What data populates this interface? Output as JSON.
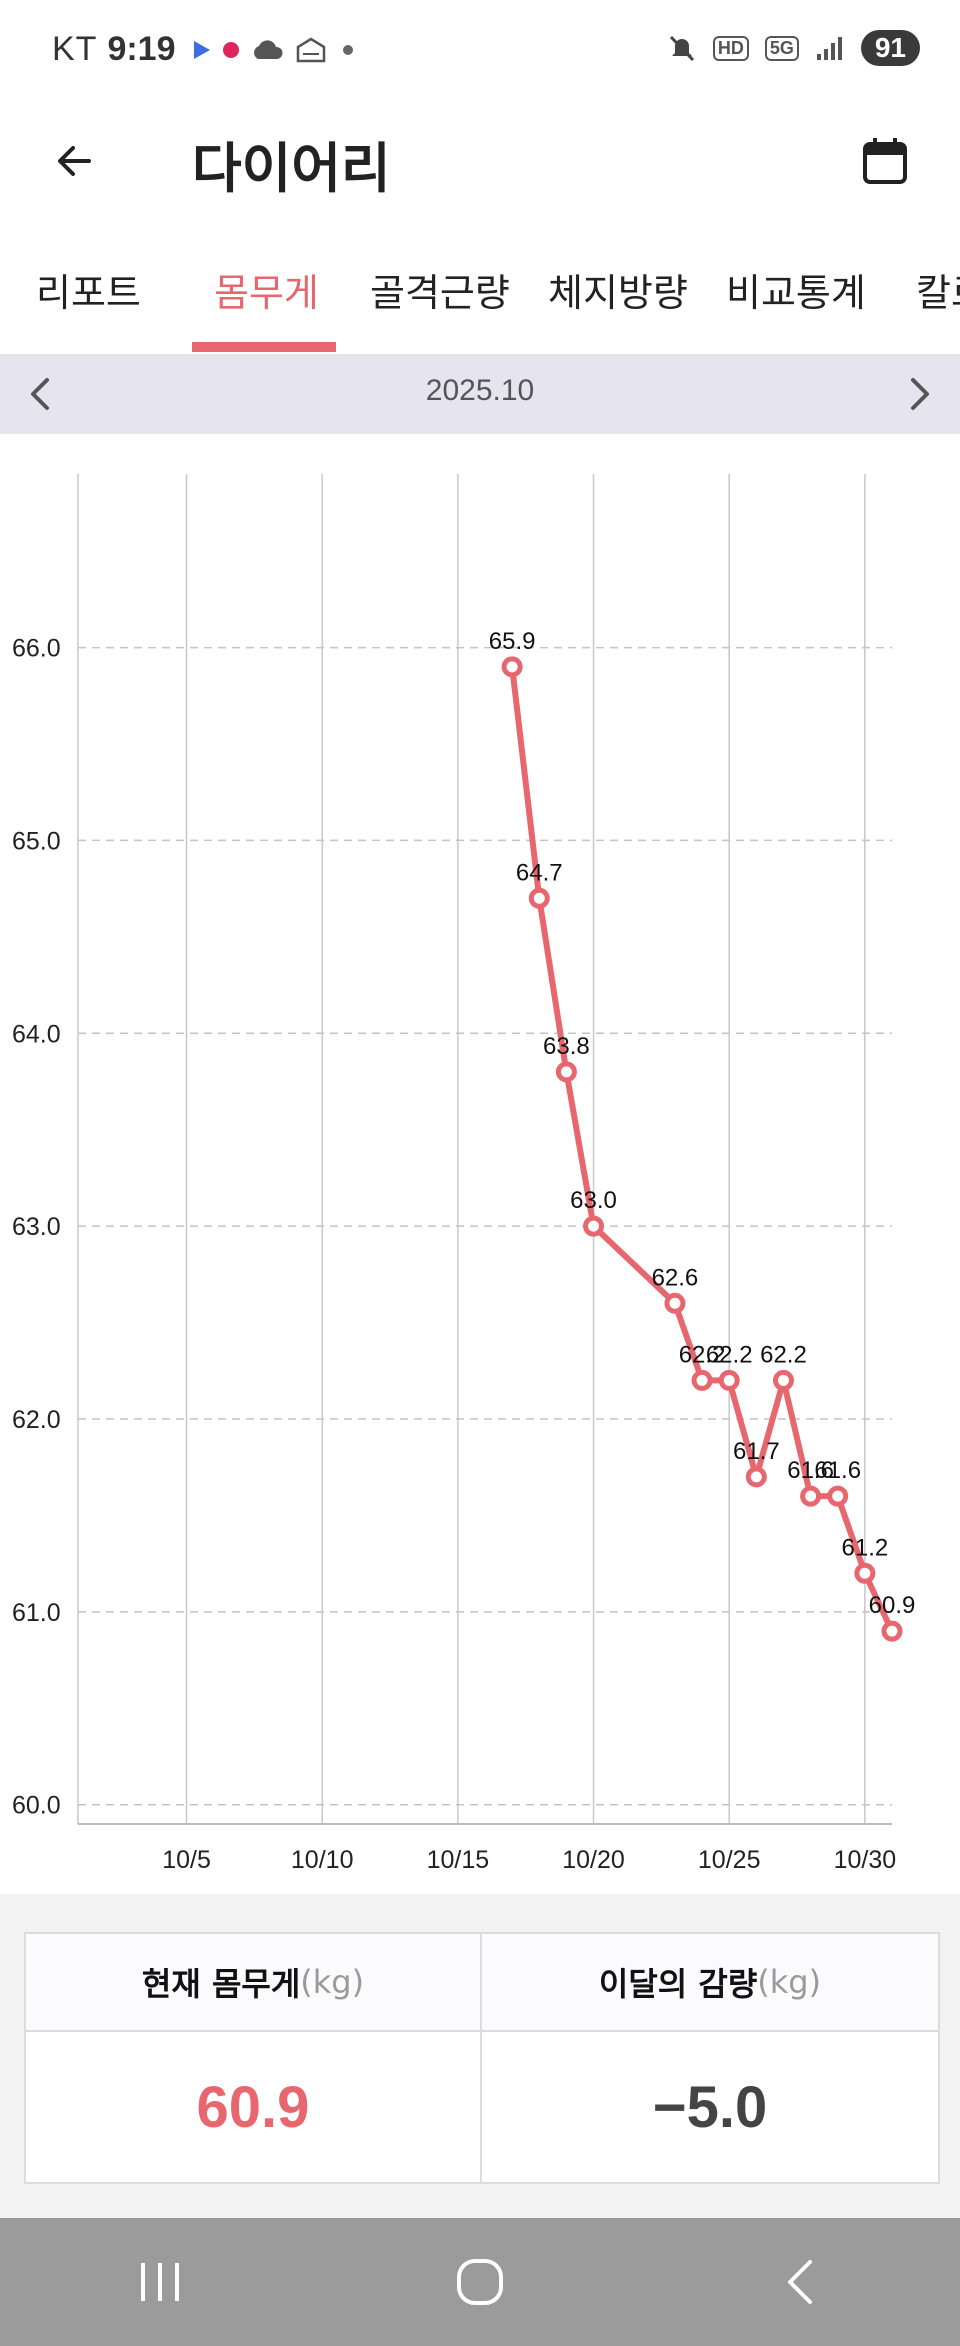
{
  "status_bar": {
    "carrier": "KT",
    "time": "9:19",
    "network_hd": "HD",
    "network_5g": "5G",
    "battery": "91"
  },
  "app_bar": {
    "title": "다이어리",
    "back_icon": "arrow-left-icon",
    "calendar_icon": "calendar-icon"
  },
  "tabs": [
    {
      "label": "리포트",
      "active": false
    },
    {
      "label": "몸무게",
      "active": true
    },
    {
      "label": "골격근량",
      "active": false
    },
    {
      "label": "체지방량",
      "active": false
    },
    {
      "label": "비교통계",
      "active": false
    },
    {
      "label": "칼로",
      "active": false
    }
  ],
  "month_nav": {
    "label": "2025.10"
  },
  "chart_data": {
    "type": "line",
    "title": "",
    "xlabel": "",
    "ylabel": "",
    "color": "#e8676f",
    "x_ticks": [
      {
        "day": 5,
        "label": "10/5"
      },
      {
        "day": 10,
        "label": "10/10"
      },
      {
        "day": 15,
        "label": "10/15"
      },
      {
        "day": 20,
        "label": "10/20"
      },
      {
        "day": 25,
        "label": "10/25"
      },
      {
        "day": 30,
        "label": "10/30"
      }
    ],
    "xlim": [
      1,
      31
    ],
    "y_ticks": [
      "60.0",
      "61.0",
      "62.0",
      "63.0",
      "64.0",
      "65.0",
      "66.0"
    ],
    "ylim": [
      59.9,
      66.9
    ],
    "grid": true,
    "series": [
      {
        "x": [
          17,
          18,
          19,
          20,
          23,
          24,
          25,
          26,
          27,
          28,
          29,
          30,
          31
        ],
        "values": [
          65.9,
          64.7,
          63.8,
          63.0,
          62.6,
          62.2,
          62.2,
          61.7,
          62.2,
          61.6,
          61.6,
          61.2,
          60.9
        ],
        "labels": [
          "65.9",
          "64.7",
          "63.8",
          "63.0",
          "62.6",
          "62.2",
          "62.2",
          "61.7",
          "62.2",
          "61.6",
          "61.6",
          "61.2",
          "60.9"
        ]
      }
    ]
  },
  "summary": {
    "current_weight_label": "현재 몸무게",
    "current_weight_unit": "(kg)",
    "current_weight_value": "60.9",
    "monthly_loss_label": "이달의 감량",
    "monthly_loss_unit": "(kg)",
    "monthly_loss_value": "−5.0"
  },
  "nav_bar": {
    "recents_icon": "recents-icon",
    "home_icon": "home-icon",
    "back_icon": "back-icon"
  }
}
